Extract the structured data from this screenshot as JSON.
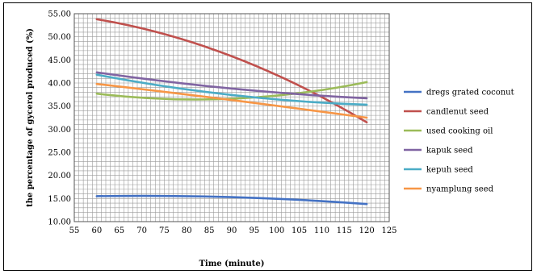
{
  "chart_data": {
    "type": "line",
    "title": "",
    "xlabel": "Time (minute)",
    "ylabel": "the percentage of gycerol produced (%)",
    "xlim": [
      55,
      125
    ],
    "ylim": [
      10,
      55
    ],
    "x_ticks": [
      55,
      60,
      65,
      70,
      75,
      80,
      85,
      90,
      95,
      100,
      105,
      110,
      115,
      120,
      125
    ],
    "y_ticks": [
      "10.00",
      "15.00",
      "20.00",
      "25.00",
      "30.00",
      "35.00",
      "40.00",
      "45.00",
      "50.00",
      "55.00"
    ],
    "grid": true,
    "legend_position": "right",
    "x": [
      60,
      90,
      120
    ],
    "series": [
      {
        "name": "dregs grated coconut",
        "values": [
          15.5,
          15.3,
          13.8
        ],
        "color": "#4472C4"
      },
      {
        "name": "candlenut seed",
        "values": [
          53.8,
          45.8,
          31.5
        ],
        "color": "#C0504D"
      },
      {
        "name": "used cooking oil",
        "values": [
          37.7,
          36.6,
          40.2
        ],
        "color": "#9BBB59"
      },
      {
        "name": "kapuk seed",
        "values": [
          42.3,
          38.8,
          36.7
        ],
        "color": "#8064A2"
      },
      {
        "name": "kepuh seed",
        "values": [
          41.8,
          37.4,
          35.3
        ],
        "color": "#4BACC6"
      },
      {
        "name": "nyamplung seed",
        "values": [
          39.8,
          36.3,
          32.5
        ],
        "color": "#F79646"
      }
    ]
  }
}
